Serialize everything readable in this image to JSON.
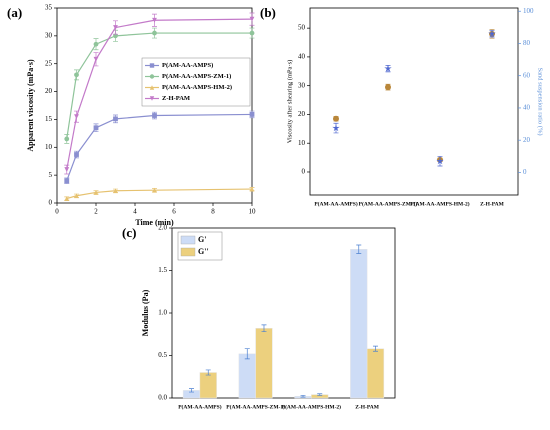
{
  "chart_data": [
    {
      "type": "line",
      "label": "(a)",
      "x_label": "Time (min)",
      "y_label": "Apparent viscosity (mPa·s)",
      "x": [
        0.5,
        1,
        2,
        3,
        5,
        10
      ],
      "xlim": [
        0,
        10
      ],
      "xticks": [
        0,
        2,
        4,
        6,
        8,
        10
      ],
      "ylim": [
        0,
        35
      ],
      "yticks": [
        0,
        5,
        10,
        15,
        20,
        25,
        30,
        35
      ],
      "legend": "upper right",
      "series": [
        {
          "name": "P(AM-AA-AMPS)",
          "color": "#8a8fd0",
          "marker": "square",
          "values": [
            4,
            8.7,
            13.5,
            15.1,
            15.7,
            15.9
          ],
          "errors": [
            0.5,
            0.6,
            0.7,
            0.7,
            0.6,
            0.6
          ]
        },
        {
          "name": "P(AM-AA-AMPS-ZM-1)",
          "color": "#8fc49a",
          "marker": "circle",
          "values": [
            11.5,
            23,
            28.5,
            30,
            30.5,
            30.5
          ],
          "errors": [
            0.8,
            0.9,
            1.0,
            1.0,
            0.9,
            0.9
          ]
        },
        {
          "name": "P(AM-AA-AMPS-HM-2)",
          "color": "#e6c270",
          "marker": "triangle",
          "values": [
            0.8,
            1.3,
            1.9,
            2.2,
            2.3,
            2.5
          ],
          "errors": [
            0.3,
            0.3,
            0.3,
            0.3,
            0.3,
            0.3
          ]
        },
        {
          "name": "Z-H-PAM",
          "color": "#c37ac9",
          "marker": "down",
          "values": [
            6,
            15.5,
            25.8,
            31.5,
            32.8,
            33
          ],
          "errors": [
            0.8,
            1.0,
            1.2,
            1.2,
            1.1,
            1.1
          ]
        }
      ]
    },
    {
      "type": "scatter",
      "label": "(b)",
      "y_label": "Viscosity after shearing (mPa·s)",
      "y2_label": "Sand suspension ratio (%)",
      "categories": [
        "P(AM-AA-AMPS)",
        "P(AM-AA-AMPS-ZM-1)",
        "P(AM-AA-AMPS-HM-2)",
        "Z-H-PAM"
      ],
      "ylim": [
        -8,
        57
      ],
      "yticks": [
        0,
        10,
        20,
        30,
        40,
        50
      ],
      "y2lim": [
        -14,
        102
      ],
      "y2ticks": [
        0,
        20,
        40,
        60,
        80,
        100
      ],
      "series": [
        {
          "name": "Viscosity after shearing",
          "color": "#b9873a",
          "marker": "circle",
          "values": [
            18.5,
            29.5,
            4.2,
            48
          ],
          "errors": [
            0.8,
            1.0,
            0.6,
            1.5
          ]
        },
        {
          "name": "Sand suspension ratio",
          "color": "#5068d0",
          "marker": "star",
          "axis": "y2",
          "values": [
            27.5,
            64.4,
            7,
            86
          ],
          "errors": [
            3,
            2,
            3,
            2
          ]
        }
      ]
    },
    {
      "type": "bar",
      "label": "(c)",
      "y_label": "Modulus (Pa)",
      "categories": [
        "P(AM-AA-AMPS)",
        "P(AM-AA-AMPS-ZM-1)",
        "P(AM-AA-AMPS-HM-2)",
        "Z-H-PAM"
      ],
      "ylim": [
        0,
        2
      ],
      "yticks": [
        {
          "value": 0,
          "label": "0.0"
        },
        {
          "value": 0.5,
          "label": "0.5"
        },
        {
          "value": 1,
          "label": "1.0"
        },
        {
          "value": 1.5,
          "label": "1.5"
        },
        {
          "value": 2,
          "label": "2.0"
        }
      ],
      "legend": "upper left",
      "series": [
        {
          "name": "G'",
          "color": "#cddcf6",
          "values": [
            0.09,
            0.52,
            0.02,
            1.75
          ],
          "errors": [
            0.02,
            0.06,
            0.01,
            0.05
          ]
        },
        {
          "name": "G''",
          "color": "#ecd07e",
          "values": [
            0.3,
            0.82,
            0.04,
            0.58
          ],
          "errors": [
            0.03,
            0.04,
            0.01,
            0.03
          ]
        }
      ]
    }
  ]
}
